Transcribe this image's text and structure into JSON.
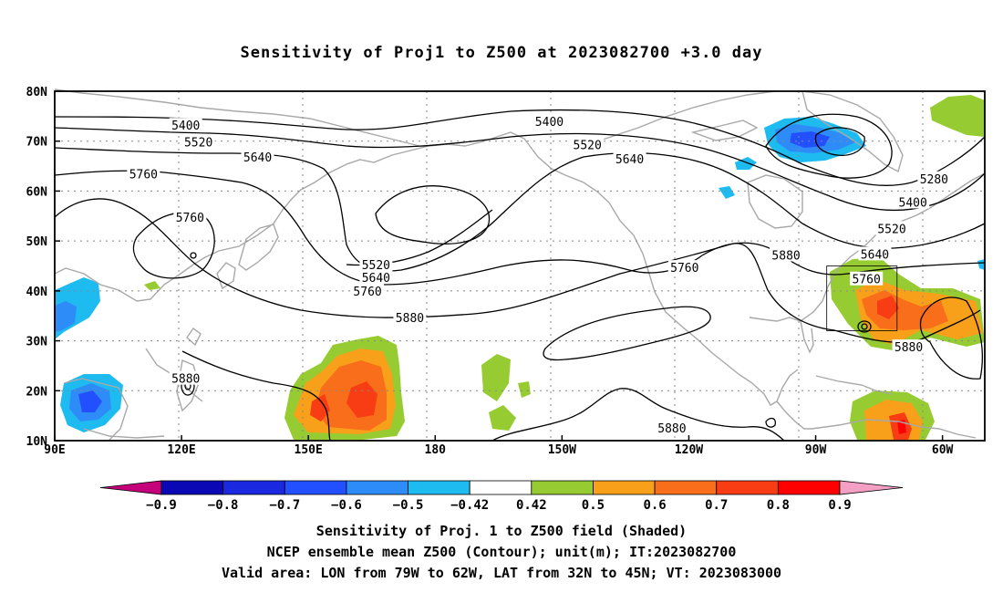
{
  "title": "Sensitivity of Proj1 to Z500 at 2023082700 +3.0 day",
  "lat_labels": [
    "80N",
    "70N",
    "60N",
    "50N",
    "40N",
    "30N",
    "20N",
    "10N"
  ],
  "lon_labels": [
    "90E",
    "120E",
    "150E",
    "180",
    "150W",
    "120W",
    "90W",
    "60W"
  ],
  "contour_labels": [
    {
      "text": "5400",
      "lon": 121,
      "lat": 73.2
    },
    {
      "text": "5520",
      "lon": 124,
      "lat": 69.9
    },
    {
      "text": "5640",
      "lon": 138,
      "lat": 66.8
    },
    {
      "text": "5760",
      "lon": 111,
      "lat": 63.5
    },
    {
      "text": "5760",
      "lon": 122,
      "lat": 54.8
    },
    {
      "text": "5520",
      "lon": 166,
      "lat": 45.3
    },
    {
      "text": "5640",
      "lon": 166,
      "lat": 42.7
    },
    {
      "text": "5760",
      "lon": 164,
      "lat": 40.0
    },
    {
      "text": "5880",
      "lon": 174,
      "lat": 34.7
    },
    {
      "text": "5880",
      "lon": 121,
      "lat": 22.5
    },
    {
      "text": "5400",
      "lon": -153,
      "lat": 74.0
    },
    {
      "text": "5520",
      "lon": -144,
      "lat": 69.3
    },
    {
      "text": "5640",
      "lon": -134,
      "lat": 66.5
    },
    {
      "text": "5280",
      "lon": -62,
      "lat": 62.5
    },
    {
      "text": "5400",
      "lon": -67,
      "lat": 57.8
    },
    {
      "text": "5520",
      "lon": -72,
      "lat": 52.5
    },
    {
      "text": "5640",
      "lon": -76,
      "lat": 47.4
    },
    {
      "text": "5760",
      "lon": -78,
      "lat": 42.4
    },
    {
      "text": "5760",
      "lon": -121,
      "lat": 44.7
    },
    {
      "text": "5880",
      "lon": -97,
      "lat": 47.2
    },
    {
      "text": "5880",
      "lon": -68,
      "lat": 28.8
    },
    {
      "text": "5880",
      "lon": -124,
      "lat": 12.6
    }
  ],
  "colorbar": {
    "ticks": [
      "-0.9",
      "-0.8",
      "-0.7",
      "-0.6",
      "-0.5",
      "-0.42",
      "0.42",
      "0.5",
      "0.6",
      "0.7",
      "0.8",
      "0.9"
    ],
    "colors": [
      "#c4007a",
      "#0a08b4",
      "#1a28e0",
      "#2350ff",
      "#2e8cf8",
      "#1ebbf0",
      "#ffffff",
      "#96cc32",
      "#f8a01a",
      "#f86e1a",
      "#f83c14",
      "#ff0000",
      "#f4a0c4"
    ]
  },
  "shading_colors": {
    "pos1": "#96cc32",
    "pos2": "#f8a01a",
    "pos3": "#f86e1a",
    "pos4": "#f83c14",
    "pos5": "#ff0000",
    "neg1": "#1ebbf0",
    "neg2": "#2e8cf8",
    "neg3": "#2350ff",
    "neg4": "#1a28e0"
  },
  "captions": [
    "Sensitivity of Proj. 1 to Z500 field (Shaded)",
    "NCEP ensemble mean Z500 (Contour); unit(m); IT:2023082700",
    "Valid area: LON from 79W to 62W, LAT from 32N to 45N; VT: 2023083000"
  ]
}
